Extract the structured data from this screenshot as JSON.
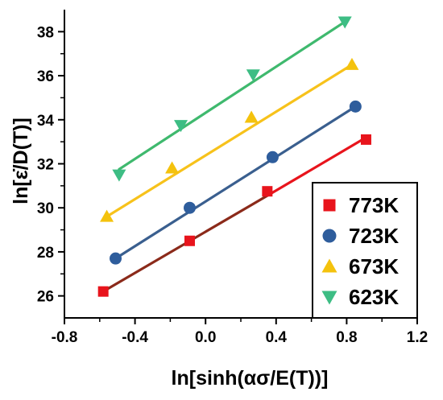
{
  "chart_data": {
    "type": "scatter",
    "xlabel": "ln[sinh(ασ/E(T))]",
    "ylabel": "ln[ε̇/D(T)]",
    "xlim": [
      -0.8,
      1.2
    ],
    "ylim": [
      25,
      39
    ],
    "x_ticks": [
      -0.8,
      -0.4,
      0.0,
      0.4,
      0.8,
      1.2
    ],
    "x_tick_labels": [
      "-0.8",
      "-0.4",
      "0.0",
      "0.4",
      "0.8",
      "1.2"
    ],
    "y_ticks": [
      26,
      28,
      30,
      32,
      34,
      36,
      38
    ],
    "y_tick_labels": [
      "26",
      "28",
      "30",
      "32",
      "34",
      "36",
      "38"
    ],
    "grid": false,
    "legend_position": "bottom-right",
    "series": [
      {
        "name": "773K",
        "marker": "square",
        "color": "#e8141c",
        "x": [
          -0.58,
          -0.09,
          0.35,
          0.91
        ],
        "y": [
          26.2,
          28.5,
          30.75,
          33.1
        ],
        "fit": {
          "x": [
            -0.58,
            0.35,
            0.89
          ],
          "y": [
            26.2,
            30.55,
            33.1
          ],
          "colors": [
            "#8b2a1a",
            "#e8141c"
          ]
        }
      },
      {
        "name": "723K",
        "marker": "circle",
        "color": "#2e5d9c",
        "x": [
          -0.51,
          -0.09,
          0.38,
          0.85
        ],
        "y": [
          27.7,
          30.0,
          32.3,
          34.6
        ],
        "fit": {
          "x": [
            -0.51,
            0.85
          ],
          "y": [
            27.7,
            34.6
          ],
          "colors": [
            "#3a5f8f"
          ]
        }
      },
      {
        "name": "673K",
        "marker": "triangle-up",
        "color": "#f4c20d",
        "x": [
          -0.56,
          -0.19,
          0.26,
          0.83
        ],
        "y": [
          29.6,
          31.8,
          34.1,
          36.5
        ],
        "fit": {
          "x": [
            -0.56,
            0.83
          ],
          "y": [
            29.6,
            36.5
          ],
          "colors": [
            "#f7c21b"
          ]
        }
      },
      {
        "name": "623K",
        "marker": "triangle-down",
        "color": "#3dbd84",
        "x": [
          -0.49,
          -0.14,
          0.27,
          0.79
        ],
        "y": [
          31.5,
          33.75,
          36.05,
          38.45
        ],
        "fit": {
          "x": [
            -0.49,
            0.79
          ],
          "y": [
            31.75,
            38.45
          ],
          "colors": [
            "#3fb96e"
          ]
        }
      }
    ]
  }
}
